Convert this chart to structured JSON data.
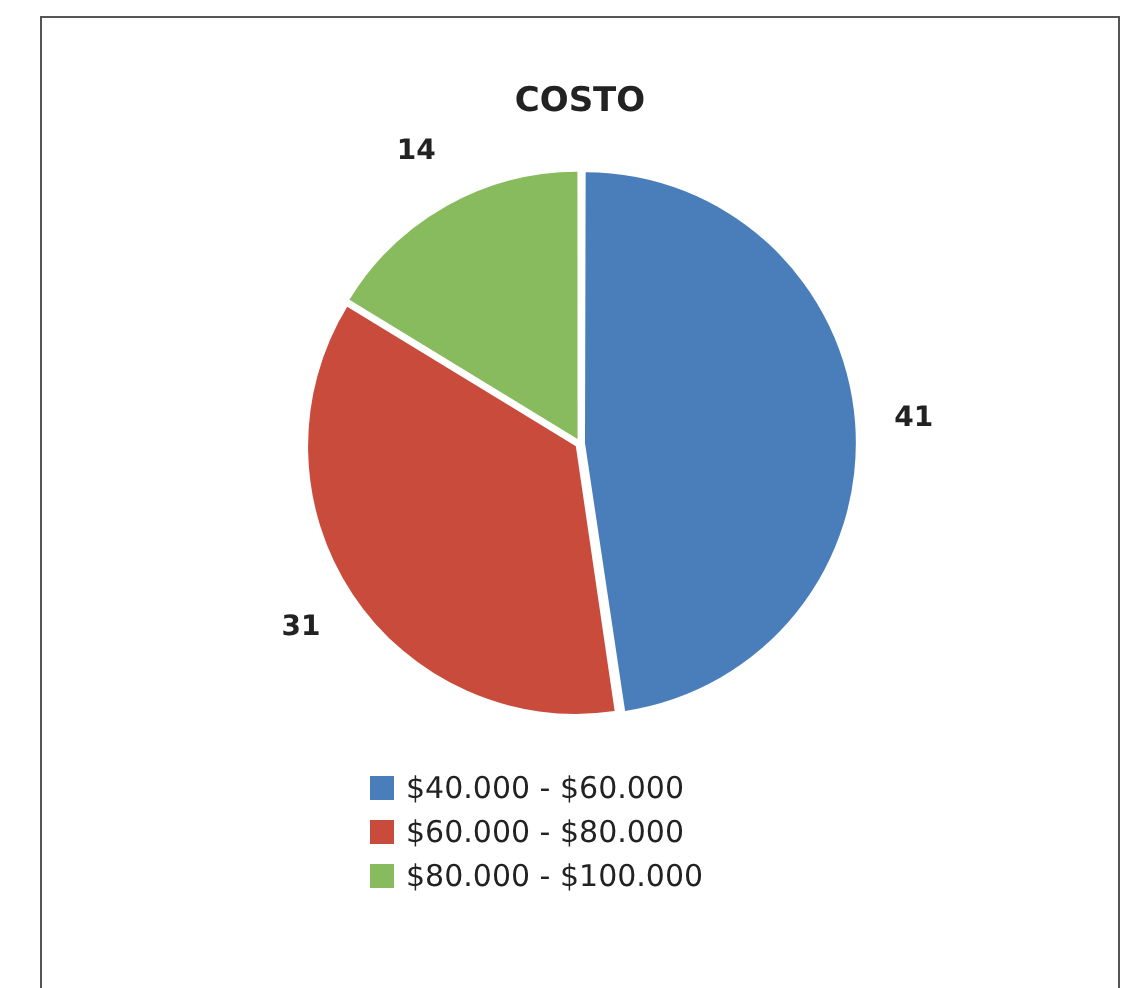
{
  "chart_data": {
    "type": "pie",
    "title": "COSTO",
    "categories": [
      "$40.000 - $60.000",
      "$60.000 - $80.000",
      "$80.000 - $100.000"
    ],
    "values": [
      41,
      31,
      14
    ],
    "colors": [
      "#4a7ebb",
      "#c84b3c",
      "#88bb5e"
    ],
    "data_labels": true,
    "legend": "bottom"
  }
}
